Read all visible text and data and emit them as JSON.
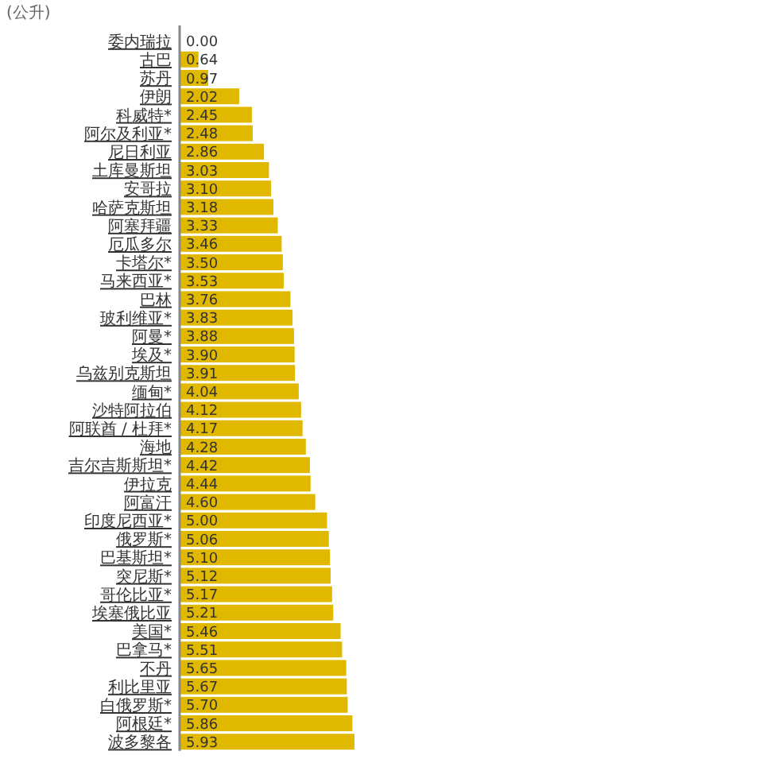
{
  "chart_data": {
    "type": "bar",
    "orientation": "horizontal",
    "title": "(公升)",
    "color": "#e0b800",
    "categories": [
      "委内瑞拉",
      "古巴",
      "苏丹",
      "伊朗",
      "科威特*",
      "阿尔及利亚*",
      "尼日利亚",
      "土库曼斯坦",
      "安哥拉",
      "哈萨克斯坦",
      "阿塞拜疆",
      "厄瓜多尔",
      "卡塔尔*",
      "马来西亚*",
      "巴林",
      "玻利维亚*",
      "阿曼*",
      "埃及*",
      "乌兹别克斯坦",
      "缅甸*",
      "沙特阿拉伯",
      "阿联酋 / 杜拜*",
      "海地",
      "吉尔吉斯斯坦*",
      "伊拉克",
      "阿富汗",
      "印度尼西亚*",
      "俄罗斯*",
      "巴基斯坦*",
      "突尼斯*",
      "哥伦比亚*",
      "埃塞俄比亚",
      "美国*",
      "巴拿马*",
      "不丹",
      "利比里亚",
      "白俄罗斯*",
      "阿根廷*",
      "波多黎各"
    ],
    "values": [
      0.0,
      0.64,
      0.97,
      2.02,
      2.45,
      2.48,
      2.86,
      3.03,
      3.1,
      3.18,
      3.33,
      3.46,
      3.5,
      3.53,
      3.76,
      3.83,
      3.88,
      3.9,
      3.91,
      4.04,
      4.12,
      4.17,
      4.28,
      4.42,
      4.44,
      4.6,
      5.0,
      5.06,
      5.1,
      5.12,
      5.17,
      5.21,
      5.46,
      5.51,
      5.65,
      5.67,
      5.7,
      5.86,
      5.93
    ],
    "value_labels": [
      "0.00",
      "0.64",
      "0.97",
      "2.02",
      "2.45",
      "2.48",
      "2.86",
      "3.03",
      "3.10",
      "3.18",
      "3.33",
      "3.46",
      "3.50",
      "3.53",
      "3.76",
      "3.83",
      "3.88",
      "3.90",
      "3.91",
      "4.04",
      "4.12",
      "4.17",
      "4.28",
      "4.42",
      "4.44",
      "4.60",
      "5.00",
      "5.06",
      "5.10",
      "5.12",
      "5.17",
      "5.21",
      "5.46",
      "5.51",
      "5.65",
      "5.67",
      "5.70",
      "5.86",
      "5.93"
    ]
  }
}
